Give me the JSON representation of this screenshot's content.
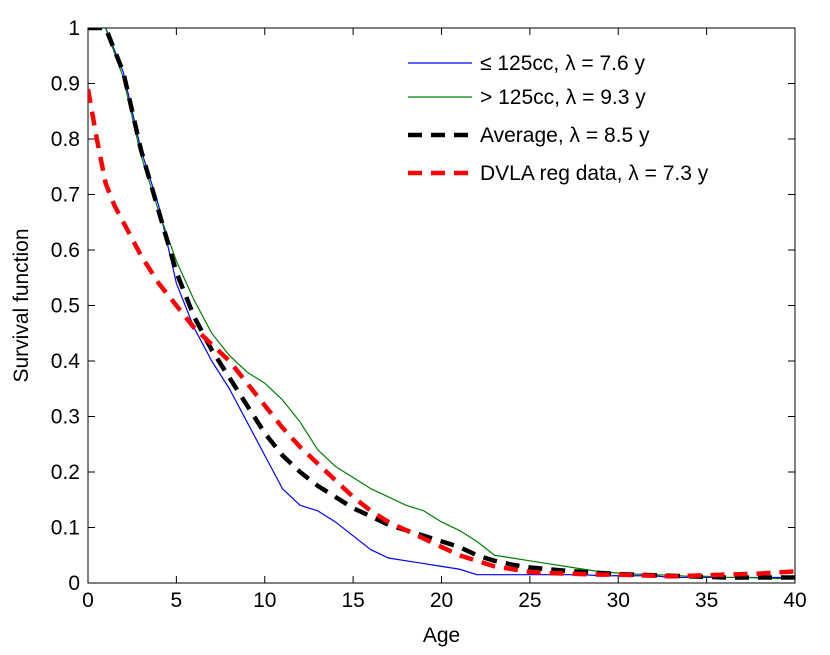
{
  "chart_data": {
    "type": "line",
    "title": "",
    "xlabel": "Age",
    "ylabel": "Survival function",
    "xlim": [
      0,
      40
    ],
    "ylim": [
      0,
      1
    ],
    "xticks": [
      0,
      5,
      10,
      15,
      20,
      25,
      30,
      35,
      40
    ],
    "yticks": [
      0,
      0.1,
      0.2,
      0.3,
      0.4,
      0.5,
      0.6,
      0.7,
      0.8,
      0.9,
      1
    ],
    "xtick_labels": [
      "0",
      "5",
      "10",
      "15",
      "20",
      "25",
      "30",
      "35",
      "40"
    ],
    "ytick_labels": [
      "0",
      "0.1",
      "0.2",
      "0.3",
      "0.4",
      "0.5",
      "0.6",
      "0.7",
      "0.8",
      "0.9",
      "1"
    ],
    "grid": false,
    "legend_position": "top-right",
    "series": [
      {
        "name": "≤ 125cc, λ = 7.6 y",
        "color": "#0000ff",
        "style": "solid-thin",
        "x": [
          0,
          1,
          2,
          3,
          4,
          5,
          6,
          7,
          8,
          9,
          10,
          11,
          12,
          13,
          14,
          15,
          16,
          17,
          18,
          19,
          20,
          21,
          22,
          23,
          24,
          25,
          26,
          27,
          28,
          29,
          30,
          31,
          32,
          33,
          34,
          35,
          36,
          37,
          38,
          39,
          40
        ],
        "values": [
          1,
          1,
          0.92,
          0.78,
          0.68,
          0.54,
          0.46,
          0.4,
          0.35,
          0.29,
          0.23,
          0.17,
          0.14,
          0.13,
          0.11,
          0.085,
          0.06,
          0.045,
          0.04,
          0.035,
          0.03,
          0.025,
          0.015,
          0.015,
          0.015,
          0.015,
          0.015,
          0.015,
          0.015,
          0.013,
          0.013,
          0.013,
          0.013,
          0.01,
          0.01,
          0.01,
          0.01,
          0.01,
          0.01,
          0.01,
          0.01
        ]
      },
      {
        "name": "> 125cc, λ = 9.3 y",
        "color": "#008000",
        "style": "solid-thin",
        "x": [
          0,
          1,
          2,
          3,
          4,
          5,
          6,
          7,
          8,
          9,
          10,
          11,
          12,
          13,
          14,
          15,
          16,
          17,
          18,
          19,
          20,
          21,
          22,
          23,
          24,
          25,
          26,
          27,
          28,
          29,
          30,
          31,
          32,
          33,
          34,
          35,
          36,
          37,
          38,
          39,
          40
        ],
        "values": [
          1,
          1,
          0.91,
          0.77,
          0.67,
          0.58,
          0.51,
          0.45,
          0.41,
          0.38,
          0.36,
          0.33,
          0.29,
          0.24,
          0.21,
          0.19,
          0.17,
          0.155,
          0.14,
          0.13,
          0.11,
          0.095,
          0.075,
          0.05,
          0.045,
          0.04,
          0.035,
          0.03,
          0.025,
          0.02,
          0.018,
          0.016,
          0.015,
          0.014,
          0.012,
          0.012,
          0.01,
          0.01,
          0.009,
          0.008,
          0.008
        ]
      },
      {
        "name": "Average, λ = 8.5 y",
        "color": "#000000",
        "style": "dashed-thick",
        "x": [
          0,
          1,
          2,
          3,
          4,
          5,
          6,
          7,
          8,
          9,
          10,
          11,
          12,
          13,
          14,
          15,
          16,
          17,
          18,
          19,
          20,
          21,
          22,
          23,
          24,
          25,
          26,
          27,
          28,
          29,
          30,
          31,
          32,
          33,
          34,
          35,
          36,
          37,
          38,
          39,
          40
        ],
        "values": [
          1,
          1,
          0.92,
          0.78,
          0.67,
          0.56,
          0.48,
          0.42,
          0.37,
          0.32,
          0.27,
          0.23,
          0.2,
          0.175,
          0.155,
          0.135,
          0.12,
          0.105,
          0.095,
          0.085,
          0.075,
          0.065,
          0.05,
          0.04,
          0.033,
          0.028,
          0.025,
          0.022,
          0.02,
          0.018,
          0.016,
          0.015,
          0.014,
          0.013,
          0.012,
          0.011,
          0.01,
          0.01,
          0.01,
          0.01,
          0.01
        ]
      },
      {
        "name": "DVLA reg data, λ = 7.3 y",
        "color": "#ff0000",
        "style": "dashed-thick",
        "x": [
          0,
          0.5,
          1,
          1.5,
          2,
          3,
          4,
          5,
          6,
          7,
          8,
          9,
          10,
          11,
          12,
          13,
          14,
          15,
          16,
          17,
          18,
          19,
          20,
          21,
          22,
          23,
          24,
          25,
          26,
          27,
          28,
          29,
          30,
          31,
          32,
          33,
          34,
          35,
          36,
          37,
          38,
          39,
          40
        ],
        "values": [
          0.89,
          0.8,
          0.72,
          0.68,
          0.65,
          0.59,
          0.54,
          0.5,
          0.46,
          0.43,
          0.4,
          0.36,
          0.32,
          0.28,
          0.245,
          0.215,
          0.185,
          0.155,
          0.13,
          0.11,
          0.095,
          0.08,
          0.065,
          0.05,
          0.04,
          0.03,
          0.025,
          0.02,
          0.018,
          0.017,
          0.016,
          0.015,
          0.015,
          0.014,
          0.013,
          0.012,
          0.013,
          0.014,
          0.015,
          0.016,
          0.017,
          0.019,
          0.021
        ]
      }
    ]
  }
}
